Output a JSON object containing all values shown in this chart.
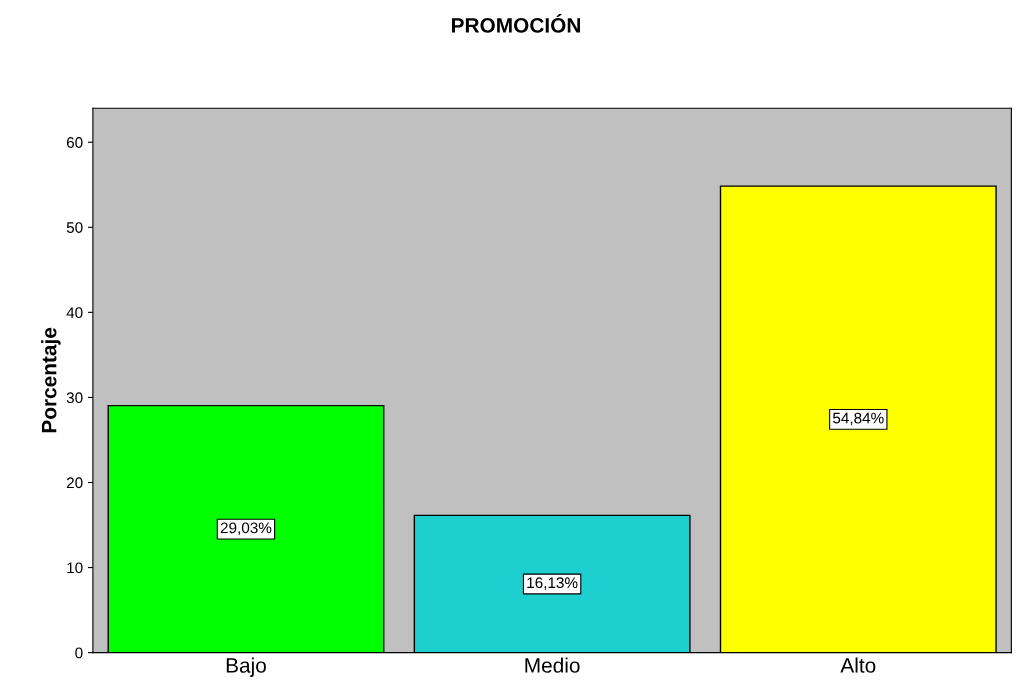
{
  "chart_data": {
    "type": "bar",
    "title": "PROMOCIÓN",
    "ylabel": "Porcentaje",
    "categories": [
      "Bajo",
      "Medio",
      "Alto"
    ],
    "values": [
      29.03,
      16.13,
      54.84
    ],
    "colors": [
      "#00ff00",
      "#1ecfcf",
      "#ffff00"
    ],
    "value_labels": [
      "29,03%",
      "16,13%",
      "54,84%"
    ],
    "ylim": [
      0,
      64
    ],
    "yticks": [
      0,
      10,
      20,
      30,
      40,
      50,
      60
    ],
    "grid": false,
    "legend": false
  }
}
